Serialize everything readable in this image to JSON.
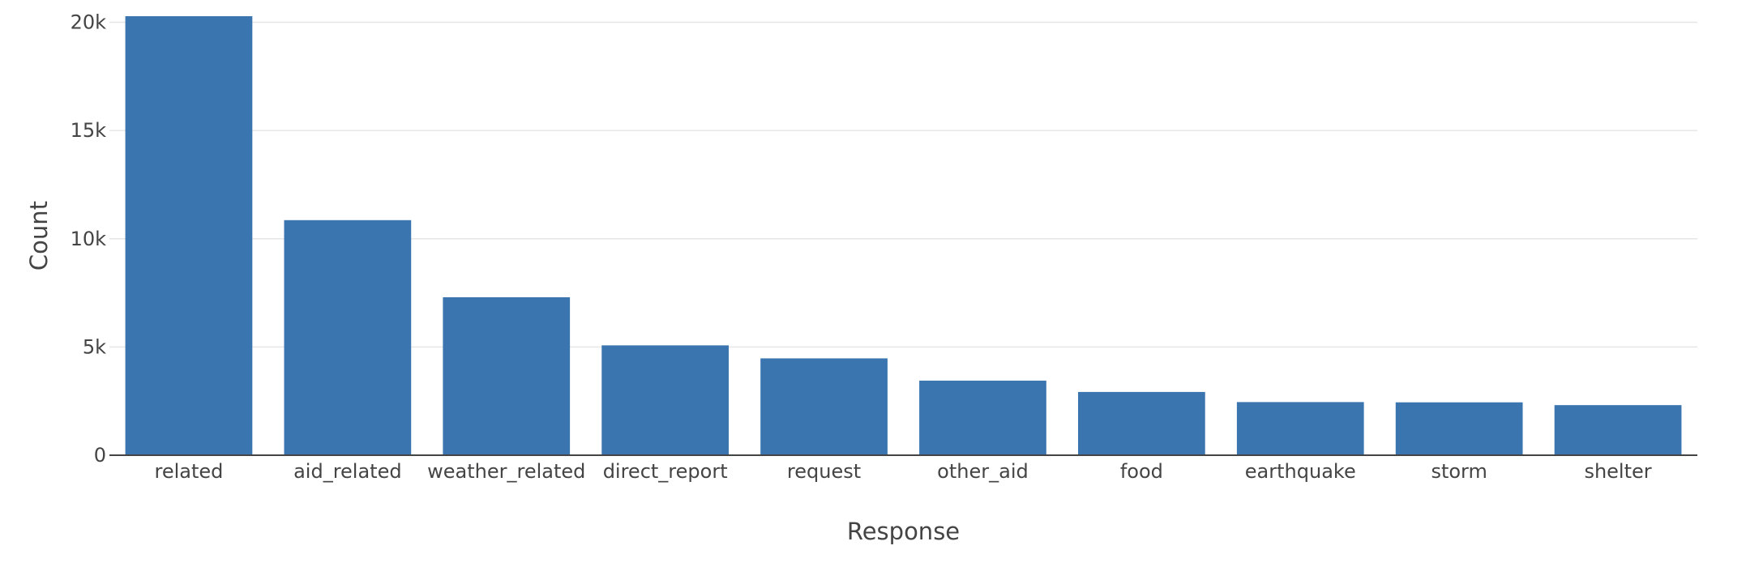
{
  "chart_data": {
    "type": "bar",
    "title": "",
    "xlabel": "Response",
    "ylabel": "Count",
    "categories": [
      "related",
      "aid_related",
      "weather_related",
      "direct_report",
      "request",
      "other_aid",
      "food",
      "earthquake",
      "storm",
      "shelter"
    ],
    "values": [
      20282,
      10860,
      7297,
      5075,
      4474,
      3446,
      2923,
      2455,
      2443,
      2314
    ],
    "ylim": [
      0,
      20282
    ],
    "yticks": [
      0,
      5000,
      10000,
      15000,
      20000
    ],
    "ytick_labels": [
      "0",
      "5k",
      "10k",
      "15k",
      "20k"
    ],
    "grid": true,
    "legend": "none",
    "bar_color": "#3a75af",
    "grid_color": "#e6e6e6",
    "axis_color": "#444444"
  }
}
